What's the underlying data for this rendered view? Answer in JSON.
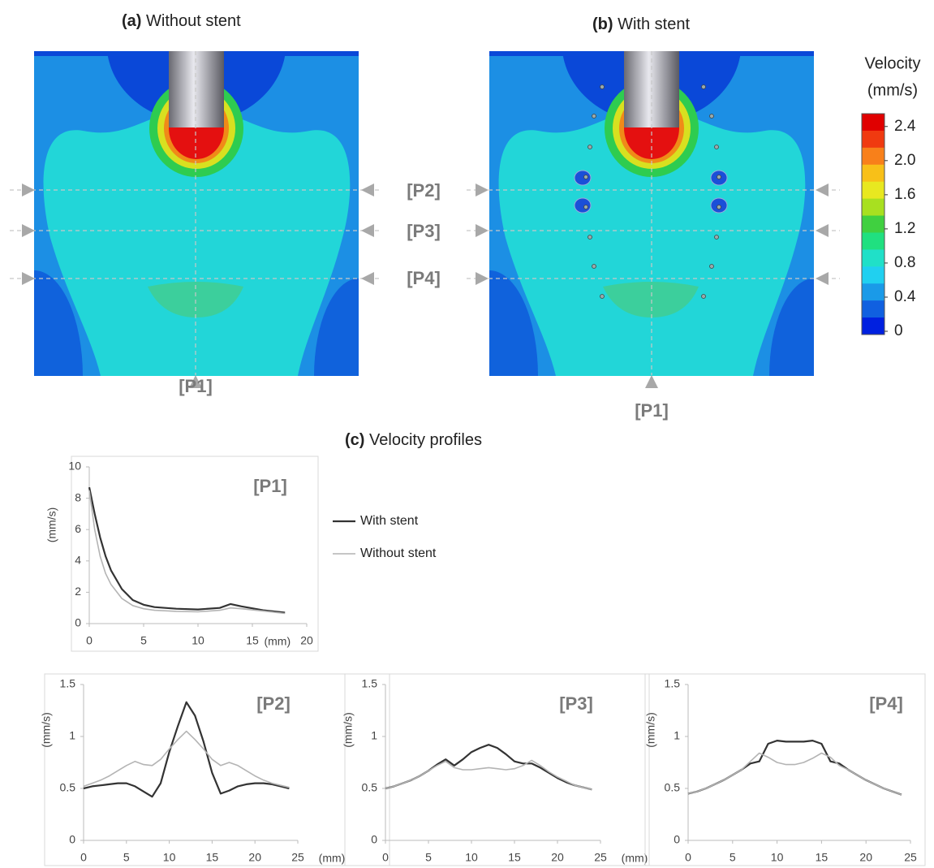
{
  "panels": {
    "a": {
      "label": "(a)",
      "title": "Without stent"
    },
    "b": {
      "label": "(b)",
      "title": "With stent"
    },
    "c": {
      "label": "(c)",
      "title": "Velocity profiles"
    }
  },
  "probes": [
    "[P1]",
    "[P2]",
    "[P3]",
    "[P4]"
  ],
  "colorbar": {
    "title": "Velocity",
    "unit": "(mm/s)",
    "lim": [
      0,
      2.55
    ],
    "ticks": [
      0,
      0.4,
      0.8,
      1.2,
      1.6,
      {
        "value": 2,
        "label": "2.0"
      },
      2.4
    ],
    "colors": [
      "#e00000",
      "#f03a10",
      "#f8801a",
      "#f8c018",
      "#e8e820",
      "#a8e020",
      "#40d040",
      "#20e080",
      "#20e0c8",
      "#20d0f0",
      "#1a9ae8",
      "#1060e0",
      "#0020e0"
    ]
  },
  "chart_data": [
    {
      "type": "line",
      "title": "[P1]",
      "ylabel": "(mm/s)",
      "xlabel": "(mm)",
      "legend": "right",
      "x": [
        0,
        0.5,
        1,
        1.5,
        2,
        3,
        4,
        5,
        6,
        8,
        10,
        12,
        13,
        14,
        16,
        18
      ],
      "xlim": [
        0,
        20
      ],
      "xticks": [
        0,
        5,
        10,
        15,
        20
      ],
      "ylim": [
        0,
        10
      ],
      "yticks": [
        0,
        2,
        4,
        6,
        8,
        10
      ],
      "series": [
        {
          "name": "With stent",
          "color": "#333333",
          "values": [
            8.7,
            7.0,
            5.5,
            4.3,
            3.4,
            2.2,
            1.5,
            1.2,
            1.05,
            0.95,
            0.9,
            1.0,
            1.25,
            1.1,
            0.85,
            0.7
          ]
        },
        {
          "name": "Without stent",
          "color": "#b4b4b4",
          "values": [
            8.5,
            6.0,
            4.3,
            3.2,
            2.5,
            1.6,
            1.15,
            0.95,
            0.85,
            0.78,
            0.75,
            0.85,
            1.0,
            0.95,
            0.8,
            0.65
          ]
        }
      ]
    },
    {
      "type": "line",
      "title": "[P2]",
      "ylabel": "(mm/s)",
      "xlabel": "(mm)",
      "x": [
        0,
        1,
        2,
        3,
        4,
        5,
        6,
        7,
        8,
        9,
        10,
        11,
        12,
        13,
        14,
        15,
        16,
        17,
        18,
        19,
        20,
        21,
        22,
        23,
        24
      ],
      "xlim": [
        0,
        25
      ],
      "xticks": [
        0,
        5,
        10,
        15,
        20,
        25
      ],
      "ylim": [
        0,
        1.5
      ],
      "yticks": [
        0,
        0.5,
        1,
        1.5
      ],
      "series": [
        {
          "color": "#333333",
          "values": [
            0.5,
            0.52,
            0.53,
            0.54,
            0.55,
            0.55,
            0.52,
            0.47,
            0.42,
            0.55,
            0.85,
            1.1,
            1.33,
            1.2,
            0.95,
            0.65,
            0.45,
            0.48,
            0.52,
            0.54,
            0.55,
            0.55,
            0.54,
            0.52,
            0.5
          ]
        },
        {
          "color": "#b4b4b4",
          "values": [
            0.52,
            0.55,
            0.58,
            0.62,
            0.67,
            0.72,
            0.76,
            0.73,
            0.72,
            0.78,
            0.88,
            0.97,
            1.05,
            0.97,
            0.88,
            0.78,
            0.72,
            0.75,
            0.72,
            0.67,
            0.62,
            0.58,
            0.55,
            0.53,
            0.51
          ]
        }
      ]
    },
    {
      "type": "line",
      "title": "[P3]",
      "ylabel": "(mm/s)",
      "xlabel": "(mm)",
      "x": [
        0,
        1,
        2,
        3,
        4,
        5,
        6,
        7,
        8,
        9,
        10,
        11,
        12,
        13,
        14,
        15,
        16,
        17,
        18,
        19,
        20,
        21,
        22,
        23,
        24
      ],
      "xlim": [
        0,
        25
      ],
      "xticks": [
        0,
        5,
        10,
        15,
        20,
        25
      ],
      "ylim": [
        0,
        1.5
      ],
      "yticks": [
        0,
        0.5,
        1,
        1.5
      ],
      "series": [
        {
          "color": "#333333",
          "values": [
            0.5,
            0.52,
            0.55,
            0.58,
            0.62,
            0.67,
            0.73,
            0.78,
            0.72,
            0.78,
            0.85,
            0.89,
            0.92,
            0.89,
            0.83,
            0.76,
            0.74,
            0.74,
            0.7,
            0.65,
            0.6,
            0.56,
            0.53,
            0.51,
            0.49
          ]
        },
        {
          "color": "#b4b4b4",
          "values": [
            0.5,
            0.52,
            0.55,
            0.58,
            0.62,
            0.67,
            0.72,
            0.76,
            0.7,
            0.68,
            0.68,
            0.69,
            0.7,
            0.69,
            0.68,
            0.69,
            0.72,
            0.77,
            0.72,
            0.66,
            0.61,
            0.57,
            0.53,
            0.51,
            0.49
          ]
        }
      ]
    },
    {
      "type": "line",
      "title": "[P4]",
      "ylabel": "(mm/s)",
      "x": [
        0,
        1,
        2,
        3,
        4,
        5,
        6,
        7,
        8,
        9,
        10,
        11,
        12,
        13,
        14,
        15,
        16,
        17,
        18,
        19,
        20,
        21,
        22,
        23,
        24
      ],
      "xlim": [
        0,
        25
      ],
      "xticks": [
        0,
        5,
        10,
        15,
        20,
        25
      ],
      "ylim": [
        0,
        1.5
      ],
      "yticks": [
        0,
        0.5,
        1,
        1.5
      ],
      "series": [
        {
          "color": "#333333",
          "values": [
            0.45,
            0.47,
            0.5,
            0.54,
            0.58,
            0.63,
            0.68,
            0.74,
            0.76,
            0.93,
            0.96,
            0.95,
            0.95,
            0.95,
            0.96,
            0.93,
            0.76,
            0.74,
            0.68,
            0.63,
            0.58,
            0.54,
            0.5,
            0.47,
            0.44
          ]
        },
        {
          "color": "#b4b4b4",
          "values": [
            0.45,
            0.47,
            0.5,
            0.54,
            0.58,
            0.63,
            0.68,
            0.76,
            0.84,
            0.8,
            0.75,
            0.73,
            0.73,
            0.75,
            0.79,
            0.84,
            0.8,
            0.72,
            0.68,
            0.63,
            0.58,
            0.54,
            0.5,
            0.47,
            0.44
          ]
        }
      ]
    }
  ]
}
